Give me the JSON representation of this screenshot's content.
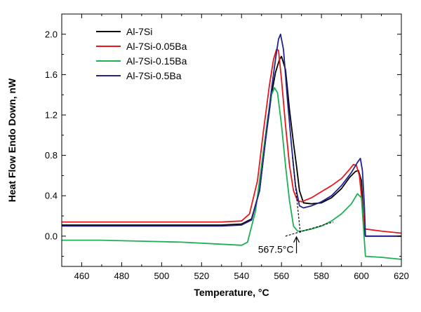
{
  "chart_data": {
    "type": "line",
    "title": "",
    "xlabel_main": "Temperature, ",
    "xlabel_unit": "°C",
    "ylabel": "Heat Flow Endo Down, nW",
    "xlim": [
      450,
      620
    ],
    "ylim": [
      -0.3,
      2.2
    ],
    "xticks": [
      460,
      480,
      500,
      520,
      540,
      560,
      580,
      600,
      620
    ],
    "yticks": [
      0.0,
      0.4,
      0.8,
      1.2,
      1.6,
      2.0
    ],
    "xtick_labels": [
      "460",
      "480",
      "500",
      "520",
      "540",
      "560",
      "580",
      "600",
      "620"
    ],
    "ytick_labels": [
      "0.0",
      "0.4",
      "0.8",
      "1.2",
      "1.6",
      "2.0"
    ],
    "grid": false,
    "legend_position": "top-left",
    "series": [
      {
        "name": "Al-7Si",
        "color": "#000000",
        "x": [
          450,
          470,
          490,
          510,
          530,
          540,
          545,
          549,
          552,
          555,
          557,
          559,
          560,
          562,
          564,
          566,
          567.5,
          569,
          571,
          575,
          580,
          585,
          590,
          594,
          597,
          598.5,
          600,
          601,
          601.5,
          602,
          610,
          620
        ],
        "y": [
          0.11,
          0.11,
          0.11,
          0.11,
          0.11,
          0.12,
          0.17,
          0.45,
          0.95,
          1.4,
          1.62,
          1.75,
          1.78,
          1.65,
          1.25,
          0.92,
          0.7,
          0.45,
          0.33,
          0.32,
          0.33,
          0.38,
          0.47,
          0.58,
          0.64,
          0.65,
          0.55,
          0.2,
          0.06,
          0.0,
          0.0,
          0.0
        ]
      },
      {
        "name": "Al-7Si-0.05Ba",
        "color": "#e8171c",
        "x": [
          450,
          470,
          490,
          510,
          530,
          540,
          544,
          548,
          551,
          554,
          556,
          557.5,
          558.5,
          560,
          562,
          564,
          566,
          568,
          570,
          575,
          580,
          585,
          590,
          594,
          596,
          597.5,
          599,
          600.5,
          601.5,
          602,
          610,
          620
        ],
        "y": [
          0.14,
          0.14,
          0.14,
          0.14,
          0.14,
          0.15,
          0.22,
          0.55,
          1.05,
          1.5,
          1.75,
          1.85,
          1.84,
          1.55,
          1.1,
          0.7,
          0.45,
          0.35,
          0.34,
          0.38,
          0.44,
          0.5,
          0.57,
          0.66,
          0.71,
          0.7,
          0.6,
          0.3,
          0.1,
          0.07,
          0.05,
          0.03
        ]
      },
      {
        "name": "Al-7Si-0.15Ba",
        "color": "#1db053",
        "x": [
          450,
          470,
          490,
          510,
          530,
          540,
          543,
          547,
          550,
          553,
          555,
          556.5,
          558,
          560,
          562,
          564,
          566,
          568,
          570,
          575,
          580,
          585,
          590,
          595,
          598,
          600,
          601,
          602,
          610,
          620
        ],
        "y": [
          -0.04,
          -0.04,
          -0.05,
          -0.06,
          -0.08,
          -0.09,
          -0.06,
          0.25,
          0.7,
          1.15,
          1.4,
          1.47,
          1.42,
          1.1,
          0.7,
          0.35,
          0.1,
          0.05,
          0.05,
          0.07,
          0.1,
          0.15,
          0.22,
          0.32,
          0.42,
          0.38,
          0.1,
          -0.2,
          -0.21,
          -0.23
        ]
      },
      {
        "name": "Al-7Si-0.5Ba",
        "color": "#24238a",
        "x": [
          450,
          470,
          490,
          510,
          530,
          540,
          545,
          549,
          552,
          555,
          557,
          558.5,
          559.5,
          561,
          563,
          565,
          567,
          569,
          571,
          575,
          580,
          585,
          590,
          595,
          598,
          599.5,
          600.5,
          601.5,
          602,
          610,
          620
        ],
        "y": [
          0.1,
          0.1,
          0.1,
          0.1,
          0.1,
          0.11,
          0.16,
          0.45,
          0.95,
          1.45,
          1.75,
          1.95,
          2.0,
          1.85,
          1.35,
          0.9,
          0.5,
          0.3,
          0.28,
          0.3,
          0.34,
          0.4,
          0.5,
          0.63,
          0.73,
          0.77,
          0.65,
          0.3,
          0.0,
          0.0,
          0.0
        ]
      }
    ],
    "annotations": {
      "onset_label": "567.5°C",
      "onset_x": 567.5
    }
  }
}
